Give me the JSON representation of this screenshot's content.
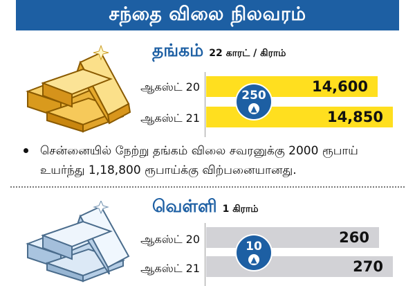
{
  "header": {
    "title": "சந்தை விலை நிலவரம்"
  },
  "gold": {
    "title": "தங்கம்",
    "unit": "22 காரட் / கிராம்",
    "rows": [
      {
        "date": "ஆகஸ்ட் 20",
        "price": "14,600"
      },
      {
        "date": "ஆகஸ்ட் 21",
        "price": "14,850"
      }
    ],
    "change": "250",
    "bar_color": "#ffdf1f"
  },
  "note": "சென்னையில் நேற்று தங்கம் விலை சவரனுக்கு 2000 ரூபாய் உயர்ந்து 1,18,800 ரூபாய்க்கு விற்பனையானது.",
  "silver": {
    "title": "வெள்ளி",
    "unit": "1 கிராம்",
    "rows": [
      {
        "date": "ஆகஸ்ட் 20",
        "price": "260"
      },
      {
        "date": "ஆகஸ்ட் 21",
        "price": "270"
      }
    ],
    "change": "10",
    "bar_color": "#d2d2d6"
  },
  "colors": {
    "accent": "#1d5fa3",
    "gold": "#ffdf1f",
    "silver": "#d2d2d6"
  },
  "icons": {
    "gold": "gold-bars-icon",
    "silver": "silver-bars-icon",
    "up": "up-arrow-icon"
  }
}
